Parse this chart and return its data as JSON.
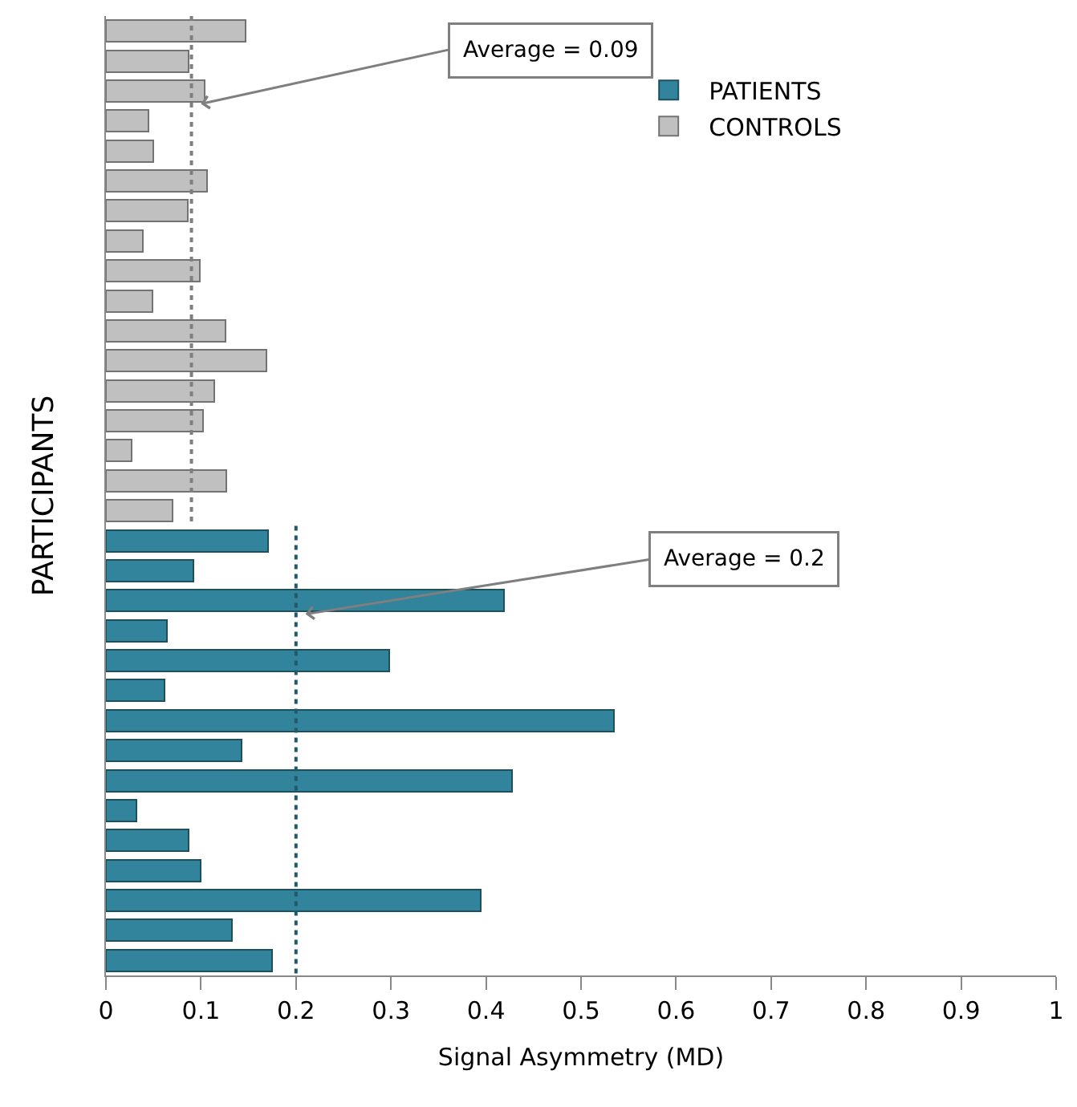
{
  "chart_data": {
    "type": "bar",
    "orientation": "horizontal",
    "stacked": true,
    "xlabel": "Signal Asymmetry (MD)",
    "ylabel": "PARTICIPANTS",
    "categories": [
      null,
      null,
      null,
      null,
      null,
      null,
      null,
      null,
      null,
      null,
      null,
      null,
      null,
      null,
      null,
      null,
      null,
      null,
      null,
      null,
      null,
      null,
      null,
      null,
      null,
      null,
      null,
      null,
      null,
      null,
      null,
      null
    ],
    "series": [
      {
        "name": "PATIENTS",
        "color": "#31849b",
        "values": [
          null,
          null,
          null,
          null,
          null,
          null,
          null,
          null,
          null,
          null,
          null,
          null,
          null,
          null,
          null,
          null,
          null,
          0.171,
          0.092,
          0.419,
          0.064,
          0.298,
          0.062,
          0.535,
          0.143,
          0.427,
          0.032,
          0.087,
          0.1,
          0.394,
          0.133,
          0.175
        ]
      },
      {
        "name": "CONTROLS",
        "color": "#c0c0c0",
        "values": [
          0.147,
          0.087,
          0.104,
          0.045,
          0.05,
          0.106,
          0.086,
          0.039,
          0.099,
          0.049,
          0.126,
          0.169,
          0.114,
          0.102,
          0.027,
          0.127,
          0.07,
          null,
          null,
          null,
          null,
          null,
          null,
          null,
          null,
          null,
          null,
          null,
          null,
          null,
          null,
          null
        ]
      }
    ],
    "ref_lines": [
      {
        "axis": "x",
        "value": 0.2,
        "label": "Average = 0.2",
        "color": "#215968",
        "line_style": "dotted"
      },
      {
        "axis": "x",
        "value": 0.09,
        "label": "Average = 0.09",
        "color": "#7f7f7f",
        "line_style": "dotted"
      }
    ],
    "xlim": [
      0,
      1
    ],
    "xticks": [
      0,
      0.1,
      0.2,
      0.3,
      0.4,
      0.5,
      0.6,
      0.7,
      0.8,
      0.9,
      1
    ],
    "tick_labels": "x",
    "legend": "top right"
  }
}
